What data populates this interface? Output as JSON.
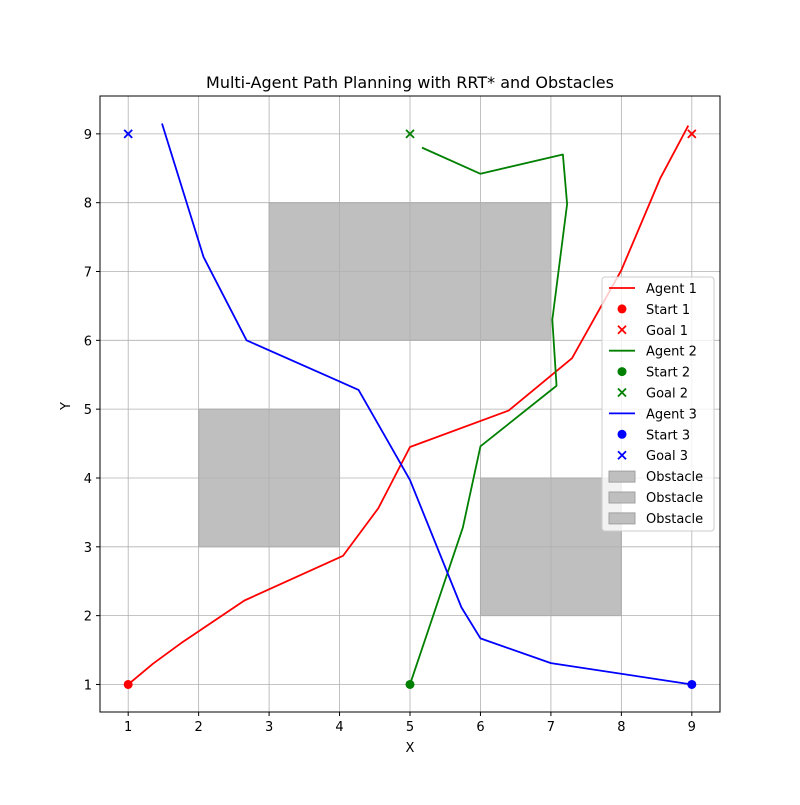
{
  "chart_data": {
    "type": "line",
    "title": "Multi-Agent Path Planning with RRT* and Obstacles",
    "xlabel": "X",
    "ylabel": "Y",
    "xlim": [
      0.6,
      9.4
    ],
    "ylim": [
      0.6,
      9.55
    ],
    "xticks": [
      1,
      2,
      3,
      4,
      5,
      6,
      7,
      8,
      9
    ],
    "yticks": [
      1,
      2,
      3,
      4,
      5,
      6,
      7,
      8,
      9
    ],
    "grid": true,
    "legend_position": "center-right",
    "obstacle_color": "#bfbfbf",
    "obstacles": [
      {
        "name": "Obstacle",
        "x": 3,
        "y": 6,
        "width": 4,
        "height": 2
      },
      {
        "name": "Obstacle",
        "x": 2,
        "y": 3,
        "width": 2,
        "height": 2
      },
      {
        "name": "Obstacle",
        "x": 6,
        "y": 2,
        "width": 2,
        "height": 2
      }
    ],
    "series": [
      {
        "name": "Agent 1",
        "color": "#ff0000",
        "start_name": "Start 1",
        "goal_name": "Goal 1",
        "start": [
          1,
          1
        ],
        "goal": [
          9,
          9
        ],
        "path": [
          [
            1,
            1
          ],
          [
            1.35,
            1.3
          ],
          [
            1.75,
            1.6
          ],
          [
            2.65,
            2.22
          ],
          [
            4.05,
            2.87
          ],
          [
            4.55,
            3.56
          ],
          [
            5.0,
            4.45
          ],
          [
            6.4,
            4.98
          ],
          [
            7.3,
            5.74
          ],
          [
            8.0,
            7.02
          ],
          [
            8.55,
            8.35
          ],
          [
            8.95,
            9.12
          ]
        ]
      },
      {
        "name": "Agent 2",
        "color": "#008000",
        "start_name": "Start 2",
        "goal_name": "Goal 2",
        "start": [
          5,
          1
        ],
        "goal": [
          5,
          9
        ],
        "path": [
          [
            5,
            1
          ],
          [
            5.75,
            3.28
          ],
          [
            6.0,
            4.46
          ],
          [
            7.08,
            5.34
          ],
          [
            7.02,
            6.3
          ],
          [
            7.23,
            7.98
          ],
          [
            7.17,
            8.7
          ],
          [
            6.0,
            8.42
          ],
          [
            5.17,
            8.8
          ]
        ]
      },
      {
        "name": "Agent 3",
        "color": "#0000ff",
        "start_name": "Start 3",
        "goal_name": "Goal 3",
        "start": [
          9,
          1
        ],
        "goal": [
          1,
          9
        ],
        "path": [
          [
            9,
            1
          ],
          [
            7.0,
            1.31
          ],
          [
            6.0,
            1.67
          ],
          [
            5.73,
            2.12
          ],
          [
            5.0,
            3.97
          ],
          [
            4.27,
            5.28
          ],
          [
            2.68,
            6.0
          ],
          [
            2.07,
            7.21
          ],
          [
            1.48,
            9.15
          ]
        ]
      }
    ],
    "legend": [
      "Agent 1",
      "Start 1",
      "Goal 1",
      "Agent 2",
      "Start 2",
      "Goal 2",
      "Agent 3",
      "Start 3",
      "Goal 3",
      "Obstacle",
      "Obstacle",
      "Obstacle"
    ]
  }
}
